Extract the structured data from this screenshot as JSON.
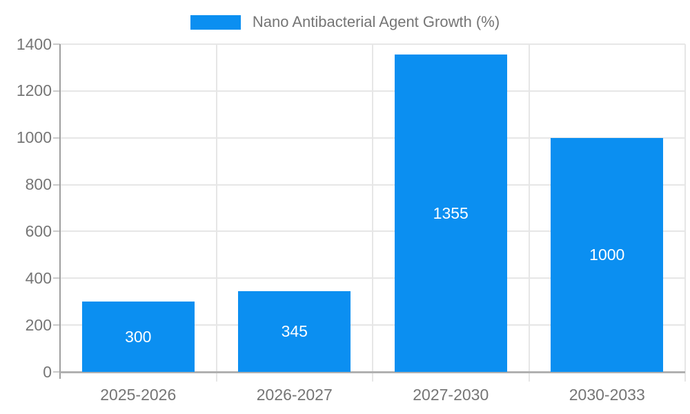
{
  "legend": {
    "label": "Nano Antibacterial Agent Growth (%)"
  },
  "chart_data": {
    "type": "bar",
    "title": "Nano Antibacterial Agent Growth (%)",
    "categories": [
      "2025-2026",
      "2026-2027",
      "2027-2030",
      "2030-2033"
    ],
    "values": [
      300,
      345,
      1355,
      1000
    ],
    "bar_labels": [
      "300",
      "345",
      "1355",
      "1000"
    ],
    "xlabel": "",
    "ylabel": "",
    "ylim": [
      0,
      1400
    ],
    "yticks": [
      0,
      200,
      400,
      600,
      800,
      1000,
      1200,
      1400
    ],
    "grid": true,
    "legend_position": "top-center",
    "colors": {
      "bar": "#0b8ff1",
      "value_label": "#ffffff",
      "axis_text": "#757575",
      "legend_text": "#757575",
      "grid_line": "#e6e6e6",
      "y_axis_line": "#9e9e9e",
      "x_axis_line": "#b0b0b0",
      "tick_mark": "#c9c9c9",
      "background": "#ffffff"
    }
  }
}
